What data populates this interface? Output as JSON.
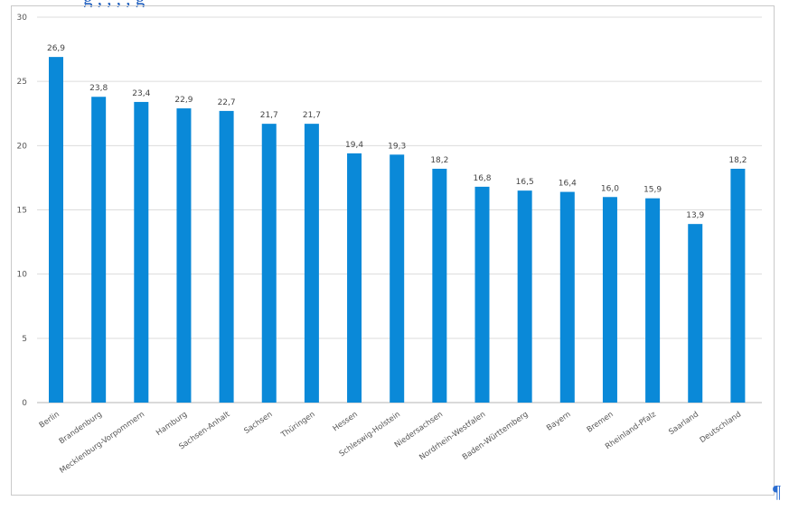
{
  "header": {
    "title_fragment": "g                 , ,        , ,          g"
  },
  "chart_data": {
    "type": "bar",
    "title": "",
    "xlabel": "",
    "ylabel": "",
    "ylim": [
      0,
      30
    ],
    "yticks": [
      0,
      5,
      10,
      15,
      20,
      25,
      30
    ],
    "grid": true,
    "legend": "none",
    "bar_color": "#0a89d8",
    "categories": [
      "Berlin",
      "Brandenburg",
      "Mecklenburg-Vorpommern",
      "Hamburg",
      "Sachsen-Anhalt",
      "Sachsen",
      "Thüringen",
      "Hessen",
      "Schleswig-Holstein",
      "Niedersachsen",
      "Nordrhein-Westfalen",
      "Baden-Württemberg",
      "Bayern",
      "Bremen",
      "Rheinland-Pfalz",
      "Saarland",
      "Deutschland"
    ],
    "values": [
      26.9,
      23.8,
      23.4,
      22.9,
      22.7,
      21.7,
      21.7,
      19.4,
      19.3,
      18.2,
      16.8,
      16.5,
      16.4,
      16.0,
      15.9,
      13.9,
      18.2
    ],
    "value_labels": [
      "26,9",
      "23,8",
      "23,4",
      "22,9",
      "22,7",
      "21,7",
      "21,7",
      "19,4",
      "19,3",
      "18,2",
      "16,8",
      "16,5",
      "16,4",
      "16,0",
      "15,9",
      "13,9",
      "18,2"
    ]
  },
  "pilcrow": "¶"
}
